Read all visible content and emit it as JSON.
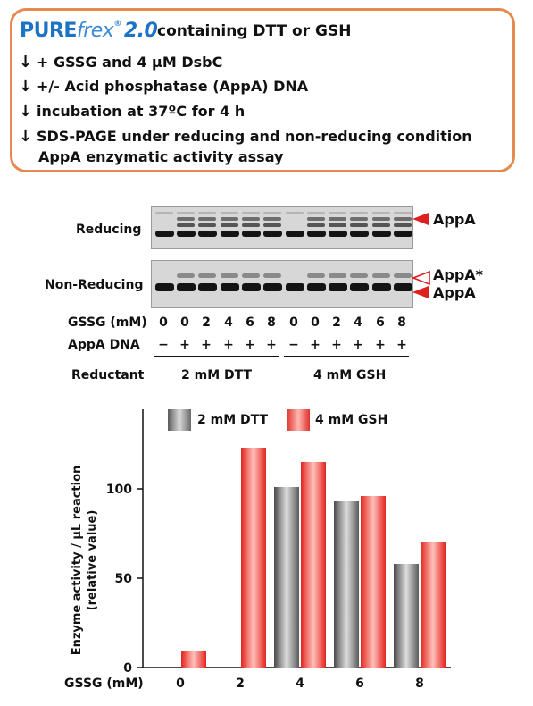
{
  "protocol": {
    "brand_pure": "PURE",
    "brand_frex": "frex",
    "brand_reg": "®",
    "brand_version": "2.0",
    "title_rest": "containing DTT or GSH",
    "arrow": "↓",
    "steps": [
      "+ GSSG and 4 µM DsbC",
      "+/- Acid phosphatase (AppA) DNA",
      "incubation at 37ºC for 4 h",
      "SDS-PAGE under reducing and non-reducing condition"
    ],
    "step_extra": "AppA enzymatic activity assay"
  },
  "gel": {
    "reducing_label": "Reducing",
    "nonreducing_label": "Non-Reducing",
    "appa_label": "AppA",
    "appa_star_label": "AppA*",
    "gssg_row_label": "GSSG (mM)",
    "gssg_values": [
      "0",
      "0",
      "2",
      "4",
      "6",
      "8",
      "0",
      "0",
      "2",
      "4",
      "6",
      "8"
    ],
    "dna_row_label": "AppA DNA",
    "dna_values": [
      "−",
      "+",
      "+",
      "+",
      "+",
      "+",
      "−",
      "+",
      "+",
      "+",
      "+",
      "+"
    ],
    "reductant_label": "Reductant",
    "reductant_dtt": "2 mM DTT",
    "reductant_gsh": "4 mM GSH",
    "colors": {
      "filled_arrow": "#e02020",
      "open_arrow": "#e02020"
    }
  },
  "chart_data": {
    "type": "bar",
    "categories": [
      "0",
      "2",
      "4",
      "6",
      "8"
    ],
    "series": [
      {
        "name": "2 mM DTT",
        "values": [
          0,
          0,
          101,
          93,
          58
        ],
        "color": "#8a8a8a"
      },
      {
        "name": "4 mM GSH",
        "values": [
          9,
          123,
          115,
          96,
          70
        ],
        "color": "#f0504a"
      }
    ],
    "xlabel": "GSSG (mM)",
    "ylabel": "Enzyme activity / µL reaction (relative value)",
    "ylabel_line1": "Enzyme activity / µL reaction",
    "ylabel_line2": "(relative value)",
    "yticks": [
      "0",
      "50",
      "100"
    ],
    "ylim": [
      0,
      150
    ],
    "legend_position": "top",
    "grid": false
  }
}
